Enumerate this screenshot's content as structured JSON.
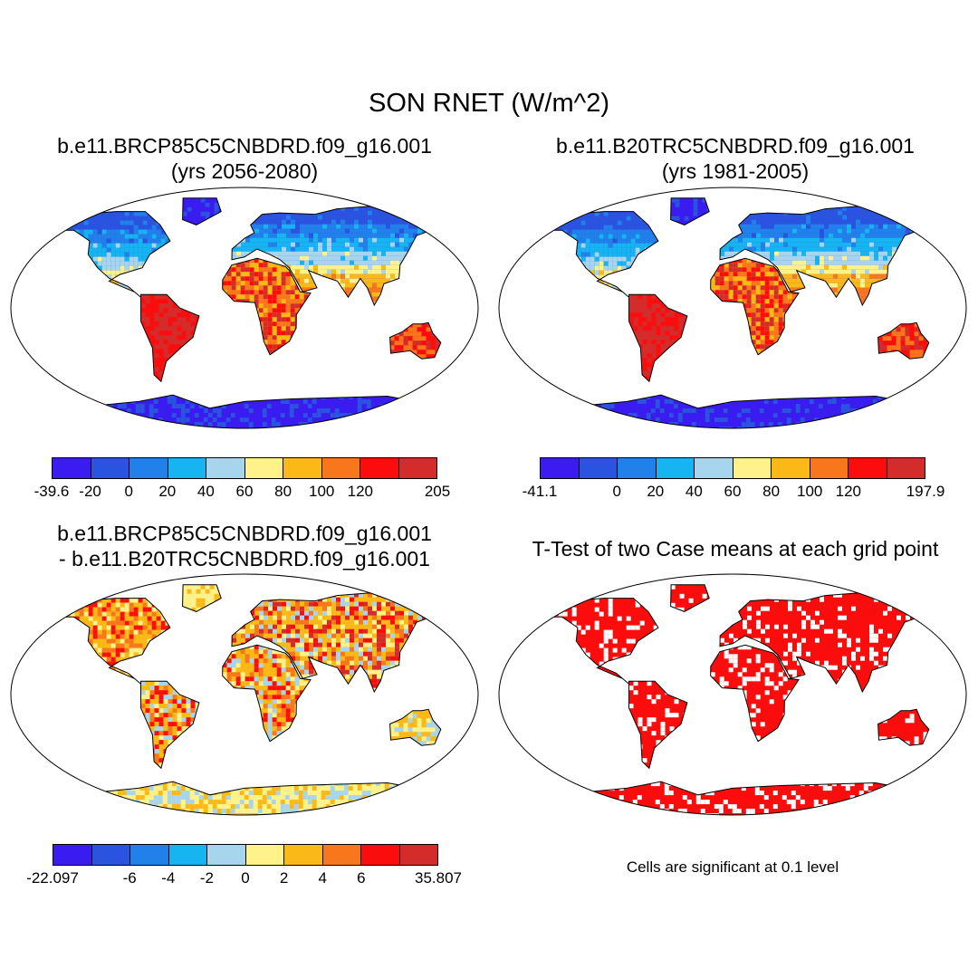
{
  "figure": {
    "title": "SON RNET (W/m^2)"
  },
  "panels": [
    {
      "id": "p1",
      "title_line1": "b.e11.BRCP85C5CNBDRD.f09_g16.001",
      "title_line2": "(yrs 2056-2080)",
      "field": "future",
      "colorbar": {
        "colors": [
          "#3a1cf0",
          "#2a53e0",
          "#2180ea",
          "#16b4f0",
          "#a8d5ee",
          "#fff28a",
          "#fbb917",
          "#f9771c",
          "#fc0d0d",
          "#d42b2b"
        ],
        "labels": [
          "-39.6",
          "-20",
          "0",
          "20",
          "40",
          "60",
          "80",
          "100",
          "120",
          "205"
        ]
      }
    },
    {
      "id": "p2",
      "title_line1": "b.e11.B20TRC5CNBDRD.f09_g16.001",
      "title_line2": "(yrs 1981-2005)",
      "field": "historical",
      "colorbar": {
        "colors": [
          "#3a1cf0",
          "#2a53e0",
          "#2180ea",
          "#16b4f0",
          "#a8d5ee",
          "#fff28a",
          "#fbb917",
          "#f9771c",
          "#fc0d0d",
          "#d42b2b"
        ],
        "labels": [
          "-41.1",
          "0",
          "20",
          "40",
          "60",
          "80",
          "100",
          "120",
          "197.9"
        ]
      }
    },
    {
      "id": "p3",
      "title_line1": "b.e11.BRCP85C5CNBDRD.f09_g16.001",
      "title_line2": "- b.e11.B20TRC5CNBDRD.f09_g16.001",
      "field": "difference",
      "colorbar": {
        "colors": [
          "#3a1cf0",
          "#2a53e0",
          "#2180ea",
          "#16b4f0",
          "#a8d5ee",
          "#fff28a",
          "#fbb917",
          "#f9771c",
          "#fc0d0d",
          "#d42b2b"
        ],
        "labels": [
          "-22.097",
          "-6",
          "-4",
          "-2",
          "0",
          "2",
          "4",
          "6",
          "35.807"
        ]
      }
    },
    {
      "id": "p4",
      "title_line1": "T-Test of two Case means at each grid point",
      "title_line2": "",
      "field": "significance",
      "note": "Cells are significant at 0.1 level",
      "significant_color": "#fc0d0d"
    }
  ]
}
